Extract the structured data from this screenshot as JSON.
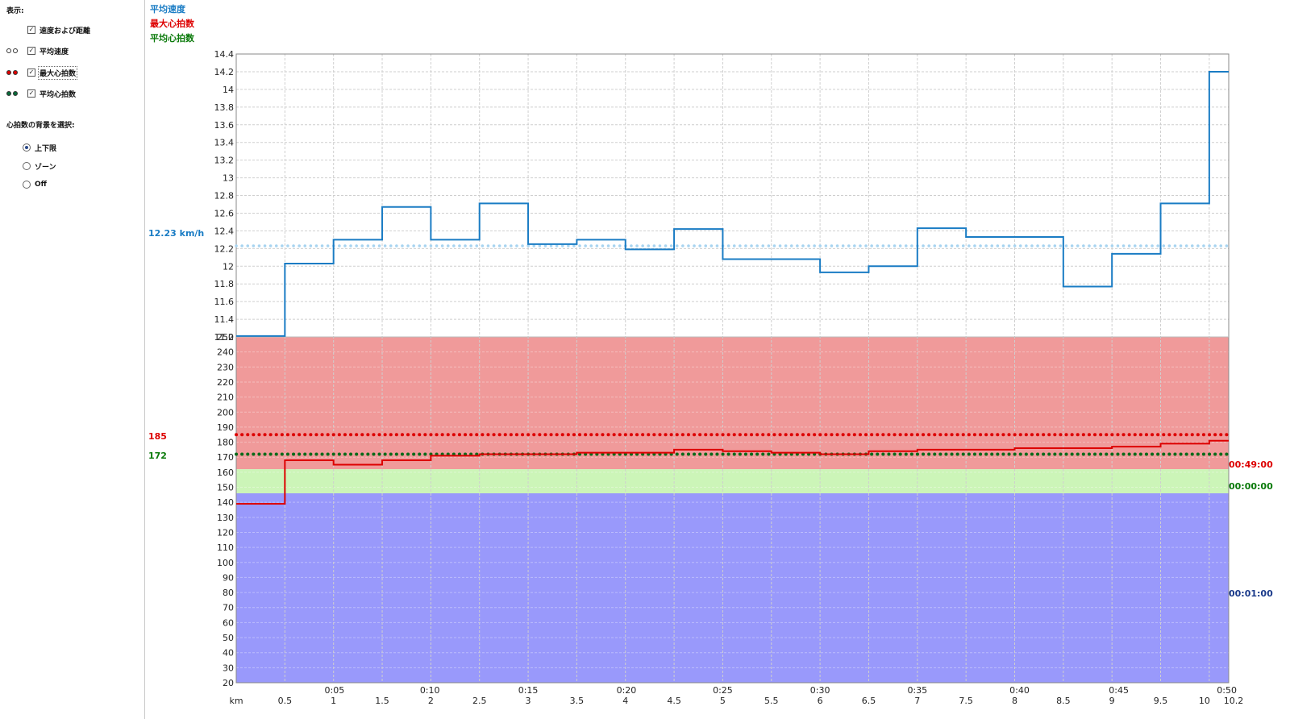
{
  "sidebar": {
    "display_label": "表示:",
    "checkboxes": [
      {
        "label": "速度および距離",
        "checked": true,
        "marker": null
      },
      {
        "label": "平均速度",
        "checked": true,
        "marker": "white"
      },
      {
        "label": "最大心拍数",
        "checked": true,
        "marker": "red"
      },
      {
        "label": "平均心拍数",
        "checked": true,
        "marker": "green"
      }
    ],
    "hr_background_label": "心拍数の背景を選択:",
    "radios": [
      {
        "label": "上下限",
        "selected": true
      },
      {
        "label": "ゾーン",
        "selected": false
      },
      {
        "label": "Off",
        "selected": false
      }
    ]
  },
  "legend": {
    "avg_speed": "平均速度",
    "max_hr": "最大心拍数",
    "avg_hr": "平均心拍数"
  },
  "values": {
    "avg_speed": "12.23 km/h",
    "max_hr": "185",
    "avg_hr": "172"
  },
  "zone_times": {
    "above": "00:49:00",
    "in_zone": "00:00:00",
    "below": "00:01:00"
  },
  "colors": {
    "speed": "#1a7cc4",
    "avg_speed": "#a8d4f0",
    "max_hr": "#dd0000",
    "avg_hr": "#0a7a0a",
    "zone_above": "#f09a9a",
    "zone_in": "#ccf5b8",
    "zone_below": "#9999fb",
    "grid": "#cfcfcf"
  },
  "chart_data": [
    {
      "type": "line",
      "x_unit": "km",
      "x": [
        0,
        0.5,
        1,
        1.5,
        2,
        2.5,
        3,
        3.5,
        4,
        4.5,
        5,
        5.5,
        6,
        6.5,
        7,
        7.5,
        8,
        8.5,
        9,
        9.5,
        10,
        10.2
      ],
      "x_tick_labels": [
        "km",
        "0.5",
        "1",
        "1.5",
        "2",
        "2.5",
        "3",
        "3.5",
        "4",
        "4.5",
        "5",
        "5.5",
        "6",
        "6.5",
        "7",
        "7.5",
        "8",
        "8.5",
        "9",
        "9.5",
        "10",
        "10.2"
      ],
      "time_tick_labels": [
        "0:05",
        "0:10",
        "0:15",
        "0:20",
        "0:25",
        "0:30",
        "0:35",
        "0:40",
        "0:45",
        "0:50"
      ],
      "time_ticks_km": [
        1.01,
        1.99,
        3.0,
        4.01,
        5.0,
        6.0,
        7.0,
        8.05,
        9.07,
        10.18
      ],
      "ylim": [
        11.2,
        14.4
      ],
      "y_ticks": [
        "11.2",
        "11.4",
        "11.6",
        "11.8",
        "12",
        "12.2",
        "12.4",
        "12.6",
        "12.8",
        "13",
        "13.2",
        "13.4",
        "13.6",
        "13.8",
        "14",
        "14.2",
        "14.4"
      ],
      "series": [
        {
          "name": "平均速度",
          "step_values": [
            11.21,
            12.03,
            12.3,
            12.67,
            12.3,
            12.71,
            12.25,
            12.3,
            12.19,
            12.42,
            12.08,
            12.08,
            11.93,
            12.0,
            12.43,
            12.33,
            12.33,
            11.77,
            12.14,
            12.71,
            14.2
          ]
        },
        {
          "name": "平均速度",
          "average": 12.23
        }
      ]
    },
    {
      "type": "line",
      "x_unit": "km",
      "ylim": [
        20,
        250
      ],
      "y_ticks": [
        "20",
        "30",
        "40",
        "50",
        "60",
        "70",
        "80",
        "90",
        "100",
        "110",
        "120",
        "130",
        "140",
        "150",
        "160",
        "170",
        "180",
        "190",
        "200",
        "210",
        "220",
        "230",
        "240",
        "250"
      ],
      "zones": {
        "upper_limit": 162,
        "lower_limit": 146
      },
      "series": [
        {
          "name": "最大心拍数",
          "step_values": [
            139,
            168,
            165,
            168,
            171,
            172,
            172,
            173,
            173,
            175,
            174,
            173,
            172,
            174,
            175,
            175,
            176,
            176,
            177,
            179,
            181
          ]
        },
        {
          "name": "最大心拍数",
          "average": 185
        },
        {
          "name": "平均心拍数",
          "average": 172
        }
      ]
    }
  ]
}
